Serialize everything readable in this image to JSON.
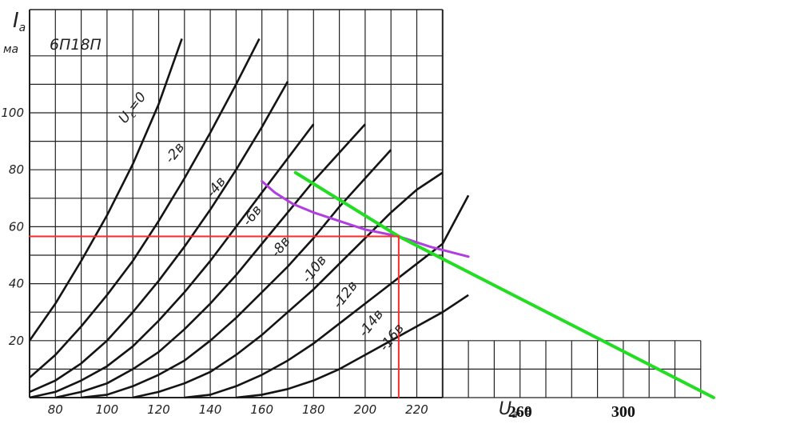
{
  "chart_data": {
    "type": "line",
    "title": "6П18П",
    "xlabel": "U",
    "xlabel_sub": "a",
    "xlabel_unit": ", в",
    "ylabel": "I",
    "ylabel_sub": "a",
    "ylabel_unit": "ма",
    "xlim": [
      70,
      336
    ],
    "ylim": [
      0,
      126
    ],
    "x_ticks": [
      80,
      100,
      120,
      140,
      160,
      180,
      200,
      220
    ],
    "x_ticks_ext": [
      260,
      300
    ],
    "y_ticks": [
      20,
      40,
      60,
      80,
      100
    ],
    "grid": true,
    "series": [
      {
        "name": "U_C=0",
        "label": "U",
        "label_sub": "c",
        "label_tail": "=0",
        "label_at": [
          107,
          96
        ],
        "points": [
          [
            70,
            20
          ],
          [
            80,
            33
          ],
          [
            90,
            48
          ],
          [
            100,
            64
          ],
          [
            110,
            82
          ],
          [
            120,
            103
          ],
          [
            129,
            126
          ]
        ]
      },
      {
        "name": "-2в",
        "label": "-2в",
        "label_at": [
          125,
          82
        ],
        "points": [
          [
            70,
            7
          ],
          [
            80,
            15
          ],
          [
            90,
            25
          ],
          [
            100,
            36
          ],
          [
            110,
            48
          ],
          [
            120,
            62
          ],
          [
            130,
            77
          ],
          [
            140,
            93
          ],
          [
            150,
            110
          ],
          [
            159,
            126
          ]
        ]
      },
      {
        "name": "-4в",
        "label": "-4в",
        "label_at": [
          141,
          70
        ],
        "points": [
          [
            70,
            2
          ],
          [
            80,
            6
          ],
          [
            90,
            12
          ],
          [
            100,
            20
          ],
          [
            110,
            30
          ],
          [
            120,
            41
          ],
          [
            130,
            53
          ],
          [
            140,
            66
          ],
          [
            150,
            80
          ],
          [
            160,
            95
          ],
          [
            170,
            111
          ]
        ]
      },
      {
        "name": "-6в",
        "label": "-6в",
        "label_at": [
          155,
          60
        ],
        "points": [
          [
            70,
            0
          ],
          [
            80,
            2
          ],
          [
            90,
            6
          ],
          [
            100,
            11
          ],
          [
            110,
            18
          ],
          [
            120,
            27
          ],
          [
            130,
            37
          ],
          [
            140,
            48
          ],
          [
            150,
            60
          ],
          [
            160,
            72
          ],
          [
            170,
            84
          ],
          [
            180,
            96
          ]
        ]
      },
      {
        "name": "-8в",
        "label": "-8в",
        "label_at": [
          166,
          49
        ],
        "points": [
          [
            80,
            0
          ],
          [
            90,
            2
          ],
          [
            100,
            5
          ],
          [
            110,
            10
          ],
          [
            120,
            16
          ],
          [
            130,
            24
          ],
          [
            140,
            33
          ],
          [
            150,
            43
          ],
          [
            160,
            54
          ],
          [
            170,
            65
          ],
          [
            180,
            76
          ],
          [
            190,
            86
          ],
          [
            200,
            96
          ]
        ]
      },
      {
        "name": "-10в",
        "label": "-10в",
        "label_at": [
          178,
          40
        ],
        "points": [
          [
            90,
            0
          ],
          [
            100,
            1
          ],
          [
            110,
            4
          ],
          [
            120,
            8
          ],
          [
            130,
            13
          ],
          [
            140,
            20
          ],
          [
            150,
            28
          ],
          [
            160,
            37
          ],
          [
            170,
            46
          ],
          [
            180,
            56
          ],
          [
            190,
            67
          ],
          [
            200,
            77
          ],
          [
            210,
            87
          ]
        ]
      },
      {
        "name": "-12в",
        "label": "-12в",
        "label_at": [
          190,
          31
        ],
        "points": [
          [
            110,
            0
          ],
          [
            120,
            2
          ],
          [
            130,
            5
          ],
          [
            140,
            9
          ],
          [
            150,
            15
          ],
          [
            160,
            22
          ],
          [
            170,
            30
          ],
          [
            180,
            38
          ],
          [
            190,
            47
          ],
          [
            200,
            56
          ],
          [
            210,
            65
          ],
          [
            220,
            73
          ],
          [
            230,
            79
          ]
        ]
      },
      {
        "name": "-14в",
        "label": "-14в",
        "label_at": [
          200,
          21
        ],
        "points": [
          [
            130,
            0
          ],
          [
            140,
            1
          ],
          [
            150,
            4
          ],
          [
            160,
            8
          ],
          [
            170,
            13
          ],
          [
            180,
            19
          ],
          [
            190,
            26
          ],
          [
            200,
            33
          ],
          [
            210,
            40
          ],
          [
            220,
            47
          ],
          [
            230,
            54
          ],
          [
            240,
            71
          ]
        ]
      },
      {
        "name": "-16в",
        "label": "-16в",
        "label_at": [
          208,
          16
        ],
        "points": [
          [
            150,
            0
          ],
          [
            160,
            1
          ],
          [
            170,
            3
          ],
          [
            180,
            6
          ],
          [
            190,
            10
          ],
          [
            200,
            15
          ],
          [
            210,
            20
          ],
          [
            220,
            25
          ],
          [
            230,
            30
          ],
          [
            240,
            36
          ]
        ]
      },
      {
        "points": [
          [
            160,
            76
          ],
          [
            165,
            72
          ],
          [
            172,
            68
          ],
          [
            180,
            65
          ],
          [
            190,
            62
          ],
          [
            200,
            59
          ],
          [
            213,
            56.6
          ],
          [
            225,
            53
          ],
          [
            240,
            49.5
          ]
        ]
      },
      {
        "points": [
          [
            173,
            79
          ],
          [
            213,
            56.6
          ],
          [
            335,
            0
          ]
        ]
      },
      {
        "points": [
          [
            70,
            56.6
          ],
          [
            213,
            56.6
          ]
        ]
      },
      {
        "points": [
          [
            213,
            56.6
          ],
          [
            213,
            0
          ]
        ]
      }
    ],
    "colors": {
      "grid": "#222222",
      "curves": "#141414",
      "purple": "#b03ee0",
      "green": "#22dd22",
      "red": "#ff2a2a"
    }
  }
}
